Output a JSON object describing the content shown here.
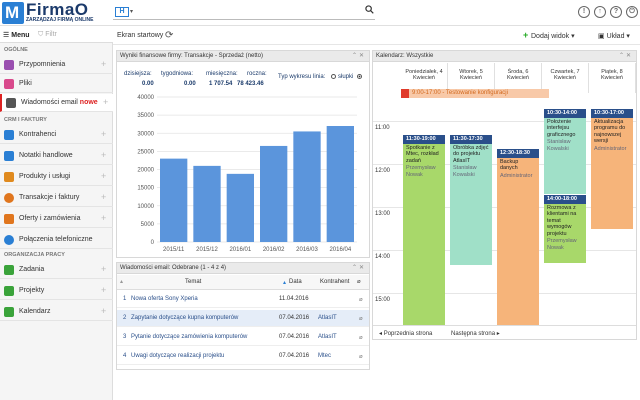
{
  "app": {
    "logo_letter": "M",
    "logo_name": "FirmaO",
    "logo_tagline": "ZARZĄDZAJ FIRMĄ ONLINE",
    "search_category": "H",
    "search_placeholder": ""
  },
  "sidebar": {
    "menu_label": "Menu",
    "filter_placeholder": "Filtr",
    "sections": {
      "general": "OGÓLNE",
      "crm": "CRM I FAKTURY",
      "work": "ORGANIZACJA PRACY"
    },
    "items": [
      {
        "label": "Przypomnienia",
        "icon": "alarm-clock-icon",
        "color": "#9a4fb0"
      },
      {
        "label": "Pliki",
        "icon": "folder-icon",
        "color": "#d94a8c"
      },
      {
        "label": "Wiadomości email",
        "badge": "nowe",
        "icon": "envelope-icon",
        "color": "#555555"
      },
      {
        "label": "Kontrahenci",
        "icon": "contacts-icon",
        "color": "#2a7fd4"
      },
      {
        "label": "Notatki handlowe",
        "icon": "notes-icon",
        "color": "#2a7fd4"
      },
      {
        "label": "Produkty i usługi",
        "icon": "box-icon",
        "color": "#e08a1e"
      },
      {
        "label": "Transakcje i faktury",
        "icon": "money-icon",
        "color": "#e0761e"
      },
      {
        "label": "Oferty i zamówienia",
        "icon": "tag-icon",
        "color": "#e0761e"
      },
      {
        "label": "Połączenia telefoniczne",
        "icon": "phone-icon",
        "color": "#2a7fd4"
      },
      {
        "label": "Zadania",
        "icon": "checkbox-icon",
        "color": "#3aa33a"
      },
      {
        "label": "Projekty",
        "icon": "project-icon",
        "color": "#3aa33a"
      },
      {
        "label": "Kalendarz",
        "icon": "calendar-icon",
        "color": "#3aa33a"
      }
    ]
  },
  "toolbar": {
    "title": "Ekran startowy",
    "add_widget": "Dodaj widok",
    "layout": "Układ"
  },
  "finance": {
    "title": "Wyniki finansowe firmy: Transakcje - Sprzedaż (netto)",
    "labels": {
      "today": "dzisiejsza:",
      "week": "tygodniowa:",
      "month": "miesięczna:",
      "year": "roczna:"
    },
    "values": {
      "today": "0.00",
      "week": "0.00",
      "month": "1 707.54",
      "year": "78 423.46"
    },
    "chart_type_label": "Typ wykresu linia:",
    "bars_label": "słupki"
  },
  "chart_data": {
    "type": "bar",
    "categories": [
      "2015/11",
      "2015/12",
      "2016/01",
      "2016/02",
      "2016/03",
      "2016/04"
    ],
    "values": [
      23000,
      21000,
      18800,
      26500,
      30500,
      32000
    ],
    "title": "",
    "xlabel": "",
    "ylabel": "",
    "ylim": [
      0,
      40000
    ],
    "yticks": [
      "0",
      "5000",
      "10000",
      "15000",
      "20000",
      "25000",
      "30000",
      "35000",
      "40000"
    ],
    "color": "#5b95dc",
    "grid": true
  },
  "mail": {
    "title": "Wiadomości email: Odebrane (1 - 4 z 4)",
    "cols": {
      "subject": "Temat",
      "date": "Data",
      "contractor": "Kontrahent"
    },
    "rows": [
      {
        "n": "1",
        "subject": "Nowa oferta Sony Xperia",
        "date": "11.04.2016",
        "contractor": ""
      },
      {
        "n": "2",
        "subject": "Zapytanie dotyczące kupna komputerów",
        "date": "07.04.2016",
        "contractor": "AtlasIT"
      },
      {
        "n": "3",
        "subject": "Pytanie dotyczące zamówienia komputerów",
        "date": "07.04.2016",
        "contractor": "AtlasIT"
      },
      {
        "n": "4",
        "subject": "Uwagi dotyczące realizacji projektu",
        "date": "07.04.2016",
        "contractor": "Mtec"
      }
    ]
  },
  "calendar": {
    "title": "Kalendarz: Wszystkie",
    "days": [
      {
        "name": "Poniedziałek, 4",
        "month": "Kwiecień"
      },
      {
        "name": "Wtorek, 5",
        "month": "Kwiecień"
      },
      {
        "name": "Środa, 6",
        "month": "Kwiecień"
      },
      {
        "name": "Czwartek, 7",
        "month": "Kwiecień"
      },
      {
        "name": "Piątek, 8",
        "month": "Kwiecień"
      }
    ],
    "allday": "9:00-17:00 - Testowanie konfiguracji",
    "hours": [
      "11:00",
      "12:00",
      "13:00",
      "14:00",
      "15:00",
      "16:00"
    ],
    "events": [
      {
        "time": "11:30-19:00",
        "text": "Spotkanie z Mtec, rozkład zadań",
        "who": "Przemysław Nowak",
        "color": "#a8d86a"
      },
      {
        "time": "11:30-17:30",
        "text": "Obróbka zdjęć do projektu AtlasIT",
        "who": "Stanisław Kowalski",
        "color": "#a0e0c8"
      },
      {
        "time": "12:30-18:30",
        "text": "Backup danych",
        "who": "Administrator",
        "color": "#f6b47a"
      },
      {
        "time": "10:30-14:00",
        "text": "Położenie interfejsu graficznego",
        "who": "Stanisław Kowalski",
        "color": "#a0e0c8"
      },
      {
        "time": "14:00-18:00",
        "text": "Rozmowa z klientami na temat wymogów projektu",
        "who": "Przemysław Nowak",
        "color": "#a8d86a"
      },
      {
        "time": "10:30-17:00",
        "text": "Aktualizacja programu do najnowszej wersji",
        "who": "Administrator",
        "color": "#f6b47a"
      }
    ],
    "prev": "Poprzednia strona",
    "next": "Następna strona"
  }
}
